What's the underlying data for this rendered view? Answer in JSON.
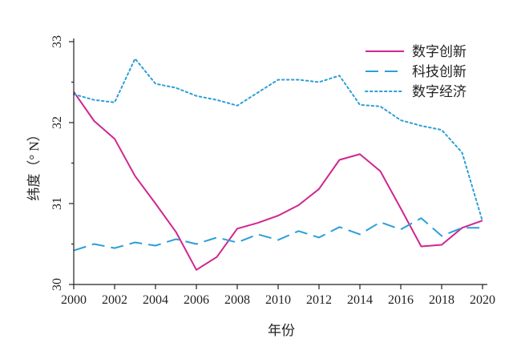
{
  "chart_data": {
    "type": "line",
    "xlabel": "年份",
    "ylabel": "纬度（° N）",
    "xlim": [
      2000,
      2020
    ],
    "ylim": [
      30,
      33
    ],
    "x": [
      2000,
      2001,
      2002,
      2003,
      2004,
      2005,
      2006,
      2007,
      2008,
      2009,
      2010,
      2011,
      2012,
      2013,
      2014,
      2015,
      2016,
      2017,
      2018,
      2019,
      2020
    ],
    "x_ticks": [
      "2000",
      "2002",
      "2004",
      "2006",
      "2008",
      "2010",
      "2012",
      "2014",
      "2016",
      "2018",
      "2020"
    ],
    "y_ticks": [
      "30",
      "31",
      "32",
      "33"
    ],
    "legend_position": "top-right",
    "grid": false,
    "series": [
      {
        "name": "数字创新",
        "style": "solid",
        "color": "#d0268f",
        "values": [
          32.38,
          32.02,
          31.8,
          31.34,
          31.0,
          30.65,
          30.18,
          30.34,
          30.69,
          30.76,
          30.85,
          30.98,
          31.18,
          31.54,
          31.61,
          31.4,
          30.94,
          30.47,
          30.49,
          30.7,
          30.79
        ]
      },
      {
        "name": "科技创新",
        "style": "dashed",
        "color": "#2b9fd8",
        "values": [
          30.42,
          30.5,
          30.45,
          30.52,
          30.48,
          30.56,
          30.5,
          30.58,
          30.52,
          30.62,
          30.55,
          30.66,
          30.58,
          30.71,
          30.62,
          30.77,
          30.68,
          30.82,
          30.6,
          30.7,
          30.7
        ]
      },
      {
        "name": "数字经济",
        "style": "dotted",
        "color": "#2b9fd8",
        "values": [
          32.35,
          32.28,
          32.25,
          32.79,
          32.48,
          32.43,
          32.33,
          32.28,
          32.21,
          32.37,
          32.53,
          32.53,
          32.5,
          32.58,
          32.22,
          32.2,
          32.03,
          31.96,
          31.91,
          31.63,
          30.78
        ]
      }
    ]
  }
}
